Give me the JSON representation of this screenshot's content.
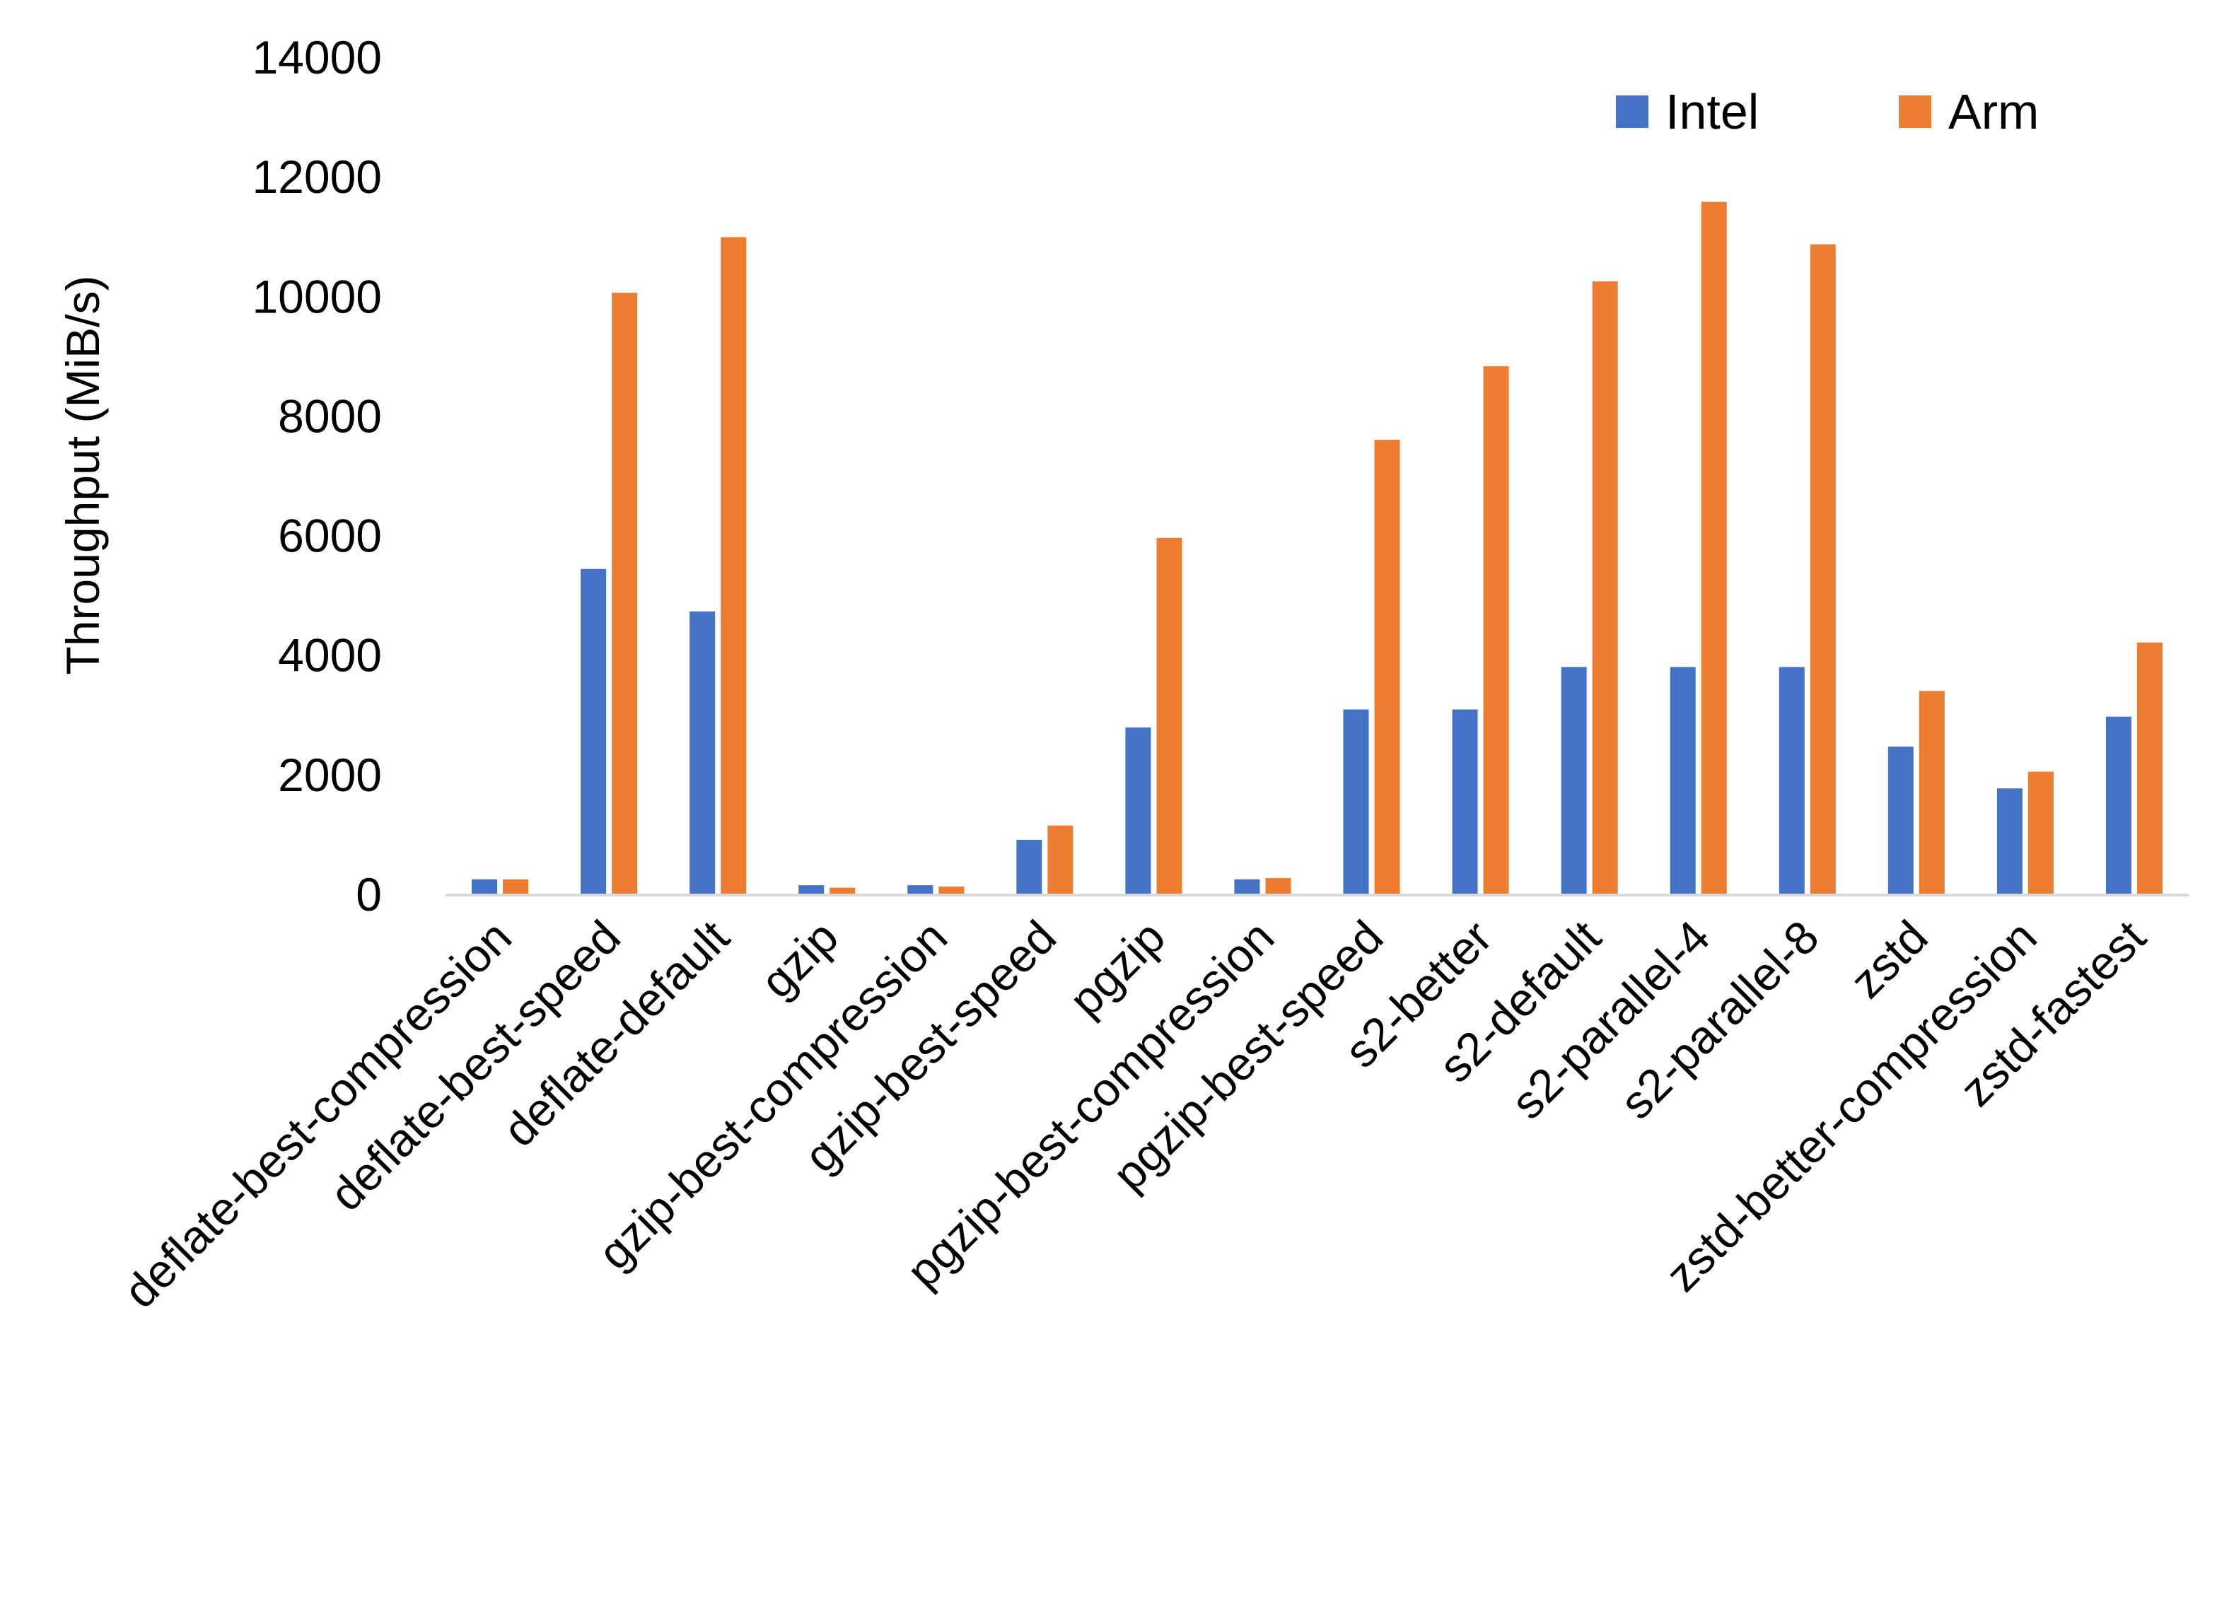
{
  "chart_data": {
    "type": "bar",
    "title": "",
    "xlabel": "",
    "ylabel": "Throughput (MiB/s)",
    "ylim": [
      0,
      14000
    ],
    "yticks": [
      0,
      2000,
      4000,
      6000,
      8000,
      10000,
      12000,
      14000
    ],
    "grid": false,
    "legend_position": "top-right",
    "categories": [
      "deflate-best-compression",
      "deflate-best-speed",
      "deflate-default",
      "gzip",
      "gzip-best-compression",
      "gzip-best-speed",
      "pgzip",
      "pgzip-best-compression",
      "pgzip-best-speed",
      "s2-better",
      "s2-default",
      "s2-parallel-4",
      "s2-parallel-8",
      "zstd",
      "zstd-better-compression",
      "zstd-fastest"
    ],
    "series": [
      {
        "name": "Intel",
        "color": "#4472C4",
        "values": [
          240,
          5430,
          4720,
          140,
          140,
          900,
          2780,
          240,
          3080,
          3080,
          3790,
          3790,
          3790,
          2460,
          1760,
          2960
        ]
      },
      {
        "name": "Arm",
        "color": "#ED7D31",
        "values": [
          240,
          10050,
          10980,
          100,
          120,
          1140,
          5950,
          260,
          7590,
          8820,
          10240,
          11570,
          10860,
          3390,
          2040,
          4200
        ]
      }
    ]
  }
}
